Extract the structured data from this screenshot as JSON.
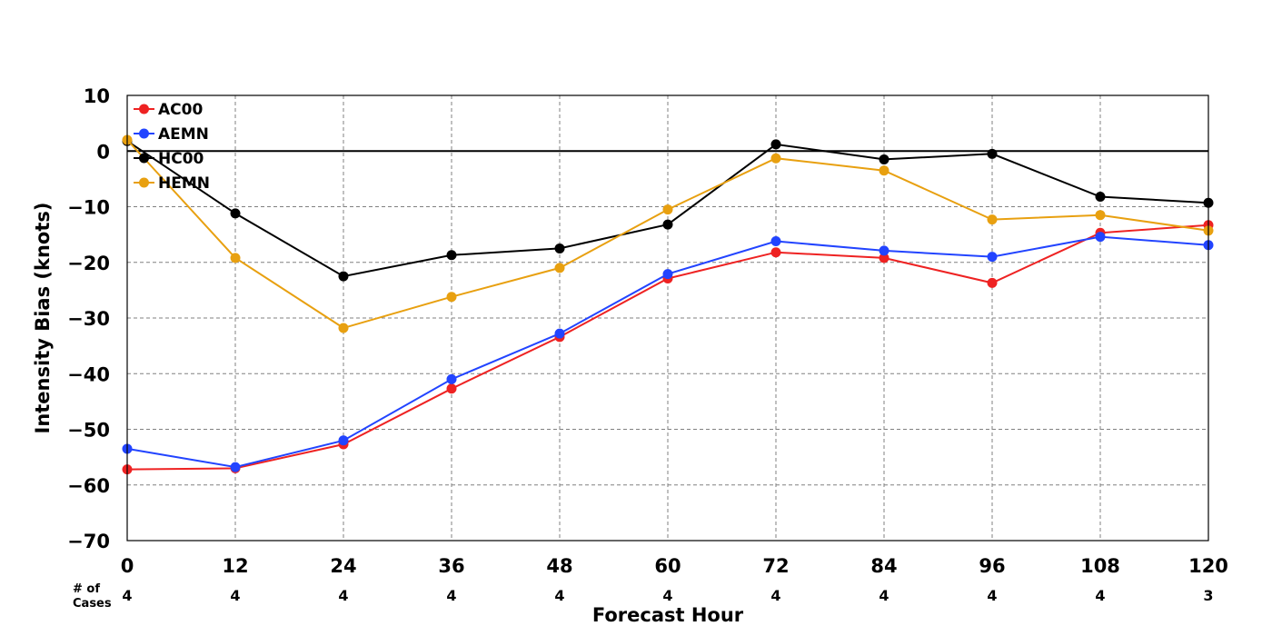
{
  "chart_data": {
    "type": "line",
    "xlabel": "Forecast Hour",
    "ylabel": "Intensity Bias (knots)",
    "x": [
      0,
      12,
      24,
      36,
      48,
      60,
      72,
      84,
      96,
      108,
      120
    ],
    "xlim": [
      0,
      120
    ],
    "ylim": [
      -70,
      10
    ],
    "yticks": [
      10,
      0,
      -10,
      -20,
      -30,
      -40,
      -50,
      -60,
      -70
    ],
    "ytick_labels": [
      "10",
      "0",
      "−10",
      "−20",
      "−30",
      "−40",
      "−50",
      "−60",
      "−70"
    ],
    "grid": true,
    "legend_position": "top-left",
    "cases_label_line1": "# of",
    "cases_label_line2": "Cases",
    "cases": [
      "4",
      "4",
      "4",
      "4",
      "4",
      "4",
      "4",
      "4",
      "4",
      "4",
      "3"
    ],
    "series": [
      {
        "name": "AC00",
        "color": "#ee2222",
        "values": [
          -57.2,
          -57.0,
          -52.7,
          -42.7,
          -33.4,
          -22.9,
          -18.2,
          -19.2,
          -23.7,
          -14.7,
          -13.3
        ]
      },
      {
        "name": "AEMN",
        "color": "#2244ff",
        "values": [
          -53.5,
          -56.8,
          -52.0,
          -41.0,
          -32.8,
          -22.1,
          -16.2,
          -17.9,
          -19.0,
          -15.4,
          -16.9
        ]
      },
      {
        "name": "HC00",
        "color": "#000000",
        "values": [
          1.8,
          -11.2,
          -22.5,
          -18.7,
          -17.5,
          -13.2,
          1.2,
          -1.5,
          -0.5,
          -8.2,
          -9.3
        ]
      },
      {
        "name": "HEMN",
        "color": "#e8a010",
        "values": [
          2.0,
          -19.2,
          -31.8,
          -26.2,
          -21.0,
          -10.5,
          -1.3,
          -3.5,
          -12.3,
          -11.5,
          -14.3
        ]
      }
    ]
  }
}
